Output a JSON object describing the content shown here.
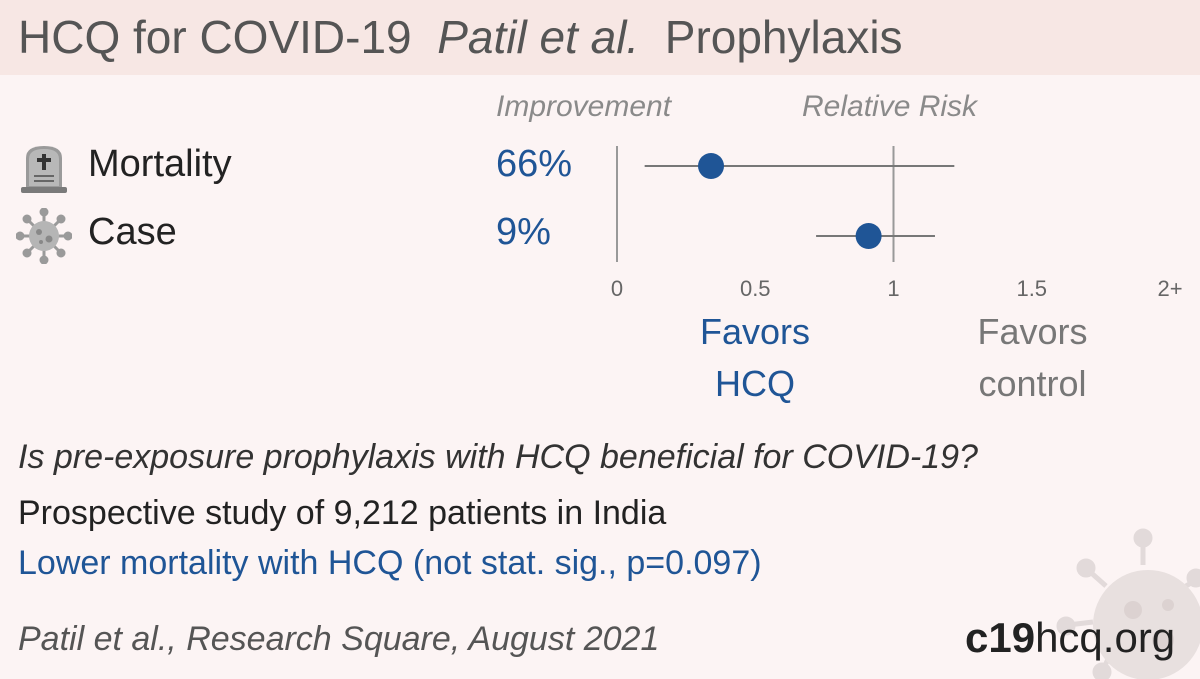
{
  "header": {
    "title_main": "HCQ for COVID-19",
    "title_authors": "Patil et al.",
    "title_topic": "Prophylaxis"
  },
  "columns": {
    "improvement": "Improvement",
    "relative_risk": "Relative Risk"
  },
  "icons": {
    "mortality": "tombstone-icon",
    "case": "virus-icon"
  },
  "chart_data": {
    "type": "forest",
    "xlim": [
      0,
      2
    ],
    "ticks": [
      {
        "value": 0,
        "label": "0"
      },
      {
        "value": 0.5,
        "label": "0.5"
      },
      {
        "value": 1,
        "label": "1"
      },
      {
        "value": 1.5,
        "label": "1.5"
      },
      {
        "value": 2,
        "label": "2+"
      }
    ],
    "rows": [
      {
        "label": "Mortality",
        "improvement": "66%",
        "rr": 0.34,
        "ci_low": 0.1,
        "ci_high": 1.22
      },
      {
        "label": "Case",
        "improvement": "9%",
        "rr": 0.91,
        "ci_low": 0.72,
        "ci_high": 1.15
      }
    ],
    "favors_left": [
      "Favors",
      "HCQ"
    ],
    "favors_right": [
      "Favors",
      "control"
    ],
    "colors": {
      "point": "#1f5596",
      "line": "#777777",
      "axis": "#999999"
    }
  },
  "summary": {
    "question": "Is pre-exposure prophylaxis with HCQ beneficial for COVID-19?",
    "study": "Prospective study of 9,212 patients in India",
    "result": "Lower mortality with HCQ (not stat. sig., p=0.097)"
  },
  "footer": {
    "citation": "Patil et al., Research Square, August 2021",
    "brand_bold": "c19",
    "brand_rest": "hcq.org"
  }
}
